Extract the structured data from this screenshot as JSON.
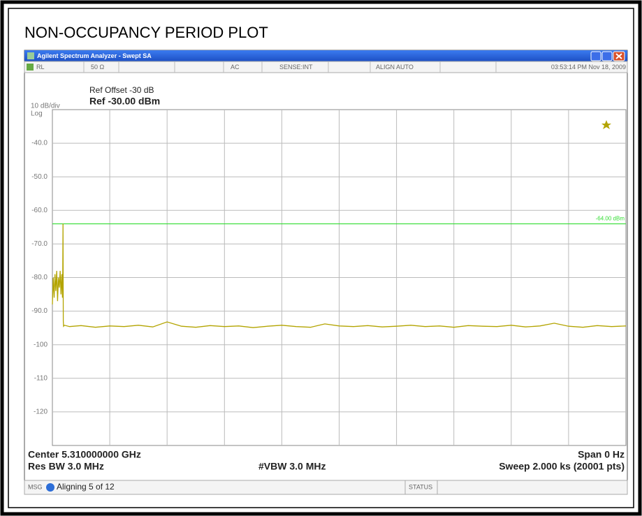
{
  "page_title": "NON-OCCUPANCY PERIOD PLOT",
  "window": {
    "title": "Agilent Spectrum Analyzer - Swept SA"
  },
  "status_row": [
    "RL",
    "50 Ω",
    "AC",
    "SENSE:INT",
    "ALIGN AUTO",
    "03:53:14 PM Nov 18, 2009"
  ],
  "chart_data": {
    "type": "line",
    "scale_label": "10 dB/div",
    "scale_type": "Log",
    "ref_offset": "Ref Offset -30 dB",
    "ref_level": "Ref -30.00 dBm",
    "xlim": [
      0,
      2000
    ],
    "ylim": [
      -130,
      -30
    ],
    "yticks": [
      {
        "value": -40,
        "label": "-40.0"
      },
      {
        "value": -50,
        "label": "-50.0"
      },
      {
        "value": -60,
        "label": "-60.0"
      },
      {
        "value": -70,
        "label": "-70.0"
      },
      {
        "value": -80,
        "label": "-80.0"
      },
      {
        "value": -90,
        "label": "-90.0"
      },
      -100,
      -110,
      -120
    ],
    "grid": true,
    "display_line": {
      "value": -64,
      "label": "-64.00 dBm",
      "color": "#33dd33"
    },
    "series": [
      {
        "color": "#b3a400",
        "x": [
          0,
          3,
          6,
          9,
          12,
          15,
          18,
          21,
          24,
          27,
          30,
          33,
          35,
          36,
          37,
          38,
          39,
          42,
          60,
          100,
          150,
          200,
          250,
          300,
          350,
          400,
          450,
          500,
          550,
          600,
          650,
          700,
          750,
          800,
          850,
          900,
          950,
          1000,
          1050,
          1100,
          1150,
          1200,
          1250,
          1300,
          1350,
          1400,
          1450,
          1500,
          1550,
          1600,
          1650,
          1700,
          1750,
          1800,
          1850,
          1900,
          1950,
          2000
        ],
        "values": [
          -88,
          -80,
          -86,
          -79,
          -84,
          -78,
          -87,
          -80,
          -83,
          -78,
          -85,
          -79,
          -86,
          -80,
          -64,
          -93,
          -94.5,
          -94.2,
          -94.6,
          -94.3,
          -94.8,
          -94.4,
          -94.6,
          -94.2,
          -94.7,
          -93.2,
          -94.5,
          -94.8,
          -94.3,
          -94.6,
          -94.4,
          -94.9,
          -94.5,
          -94.2,
          -94.6,
          -94.8,
          -93.8,
          -94.4,
          -94.6,
          -94.3,
          -94.7,
          -94.5,
          -94.2,
          -94.6,
          -94.4,
          -94.8,
          -94.3,
          -94.5,
          -94.6,
          -94.2,
          -94.7,
          -94.4,
          -93.6,
          -94.5,
          -94.8,
          -94.3,
          -94.6,
          -94.4
        ]
      }
    ]
  },
  "footer": {
    "center": "Center 5.310000000 GHz",
    "span": "Span 0 Hz",
    "res_bw": "Res BW 3.0 MHz",
    "vbw": "#VBW 3.0 MHz",
    "sweep": "Sweep 2.000 ks (20001 pts)"
  },
  "status_bar": {
    "msg": "MSG",
    "message": "Aligning 5 of 12",
    "status": "STATUS"
  }
}
